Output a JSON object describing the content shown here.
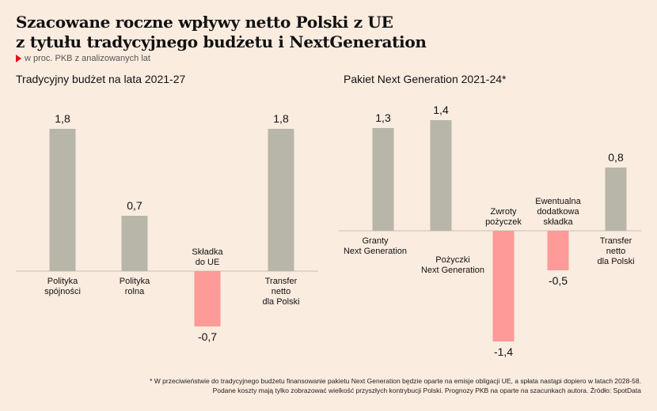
{
  "title": {
    "line1": "Szacowane roczne wpływy netto Polski z UE",
    "line2": "z tytułu tradycyjnego budżetu i NextGeneration"
  },
  "subtitle": "w proc. PKB z analizowanych lat",
  "colors": {
    "positive": "#b7b6a8",
    "negative": "#fe9a97",
    "background": "#fbece0",
    "accent": "#e0141e"
  },
  "chart_data": [
    {
      "type": "bar",
      "title": "Tradycyjny budżet na lata 2021-27",
      "categories": [
        [
          "Polityka",
          "spójności"
        ],
        [
          "Polityka",
          "rolna"
        ],
        [
          "Składka",
          "do UE"
        ],
        [
          "Transfer",
          "netto",
          "dla Polski"
        ]
      ],
      "values": [
        1.8,
        0.7,
        -0.7,
        1.8
      ],
      "value_labels": [
        "1,8",
        "0,7",
        "-0,7",
        "1,8"
      ],
      "ylim": [
        -1.4,
        1.8
      ]
    },
    {
      "type": "bar",
      "title": "Pakiet Next Generation 2021-24*",
      "categories": [
        [
          "Granty",
          "Next Generation"
        ],
        [
          "Pożyczki",
          "Next Generation"
        ],
        [
          "Zwroty",
          "pożyczek"
        ],
        [
          "Ewentualna",
          "dodatkowa",
          "składka"
        ],
        [
          "Transfer",
          "netto",
          "dla Polski"
        ]
      ],
      "values": [
        1.3,
        1.4,
        -1.4,
        -0.5,
        0.8
      ],
      "value_labels": [
        "1,3",
        "1,4",
        "-1,4",
        "-0,5",
        "0,8"
      ],
      "ylim": [
        -1.4,
        1.8
      ]
    }
  ],
  "footnote": {
    "line1": "* W przeciwieństwie do tradycyjnego budżetu finansowanie pakietu Next Generation będzie oparte na emisje obligacji UE, a spłata nastąpi dopiero w latach 2028-58.",
    "line2": "Podane koszty mają tylko zobrazować wielkość przyszłych kontrybucji Polski. Prognozy PKB na oparte na szacunkach autora. Źródło: SpotData"
  }
}
